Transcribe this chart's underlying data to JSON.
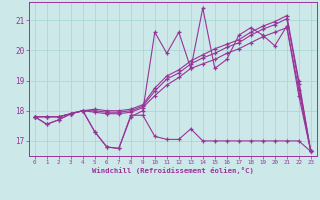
{
  "xlabel": "Windchill (Refroidissement éolien,°C)",
  "bg_color": "#cce8e8",
  "grid_color": "#aad8d8",
  "line_color": "#993399",
  "axis_bar_color": "#8833aa",
  "x_ticks": [
    0,
    1,
    2,
    3,
    4,
    5,
    6,
    7,
    8,
    9,
    10,
    11,
    12,
    13,
    14,
    15,
    16,
    17,
    18,
    19,
    20,
    21,
    22,
    23
  ],
  "y_ticks": [
    17,
    18,
    19,
    20,
    21
  ],
  "ylim": [
    16.5,
    21.6
  ],
  "xlim": [
    -0.5,
    23.5
  ],
  "series": [
    [
      17.8,
      17.55,
      17.7,
      17.9,
      18.0,
      17.3,
      16.8,
      16.75,
      17.8,
      18.0,
      20.6,
      19.9,
      20.6,
      19.4,
      21.4,
      19.4,
      19.7,
      20.5,
      20.75,
      20.5,
      20.15,
      20.8,
      18.5,
      16.65
    ],
    [
      17.8,
      17.55,
      17.7,
      17.9,
      18.0,
      17.3,
      16.8,
      16.75,
      17.85,
      17.85,
      17.15,
      17.05,
      17.05,
      17.4,
      17.0,
      17.0,
      17.0,
      17.0,
      17.0,
      17.0,
      17.0,
      17.0,
      17.0,
      16.65
    ],
    [
      17.8,
      17.8,
      17.8,
      17.9,
      18.0,
      17.95,
      17.9,
      17.9,
      17.95,
      18.1,
      18.5,
      18.85,
      19.1,
      19.4,
      19.55,
      19.7,
      19.9,
      20.05,
      20.25,
      20.45,
      20.6,
      20.75,
      18.7,
      16.65
    ],
    [
      17.8,
      17.8,
      17.8,
      17.9,
      18.0,
      18.0,
      17.95,
      17.95,
      18.0,
      18.15,
      18.65,
      19.05,
      19.25,
      19.55,
      19.75,
      19.9,
      20.1,
      20.25,
      20.5,
      20.7,
      20.85,
      21.05,
      18.9,
      16.65
    ],
    [
      17.8,
      17.8,
      17.8,
      17.9,
      18.0,
      18.05,
      18.0,
      18.0,
      18.05,
      18.2,
      18.75,
      19.15,
      19.35,
      19.65,
      19.85,
      20.05,
      20.2,
      20.35,
      20.6,
      20.8,
      20.95,
      21.15,
      19.0,
      16.65
    ]
  ]
}
